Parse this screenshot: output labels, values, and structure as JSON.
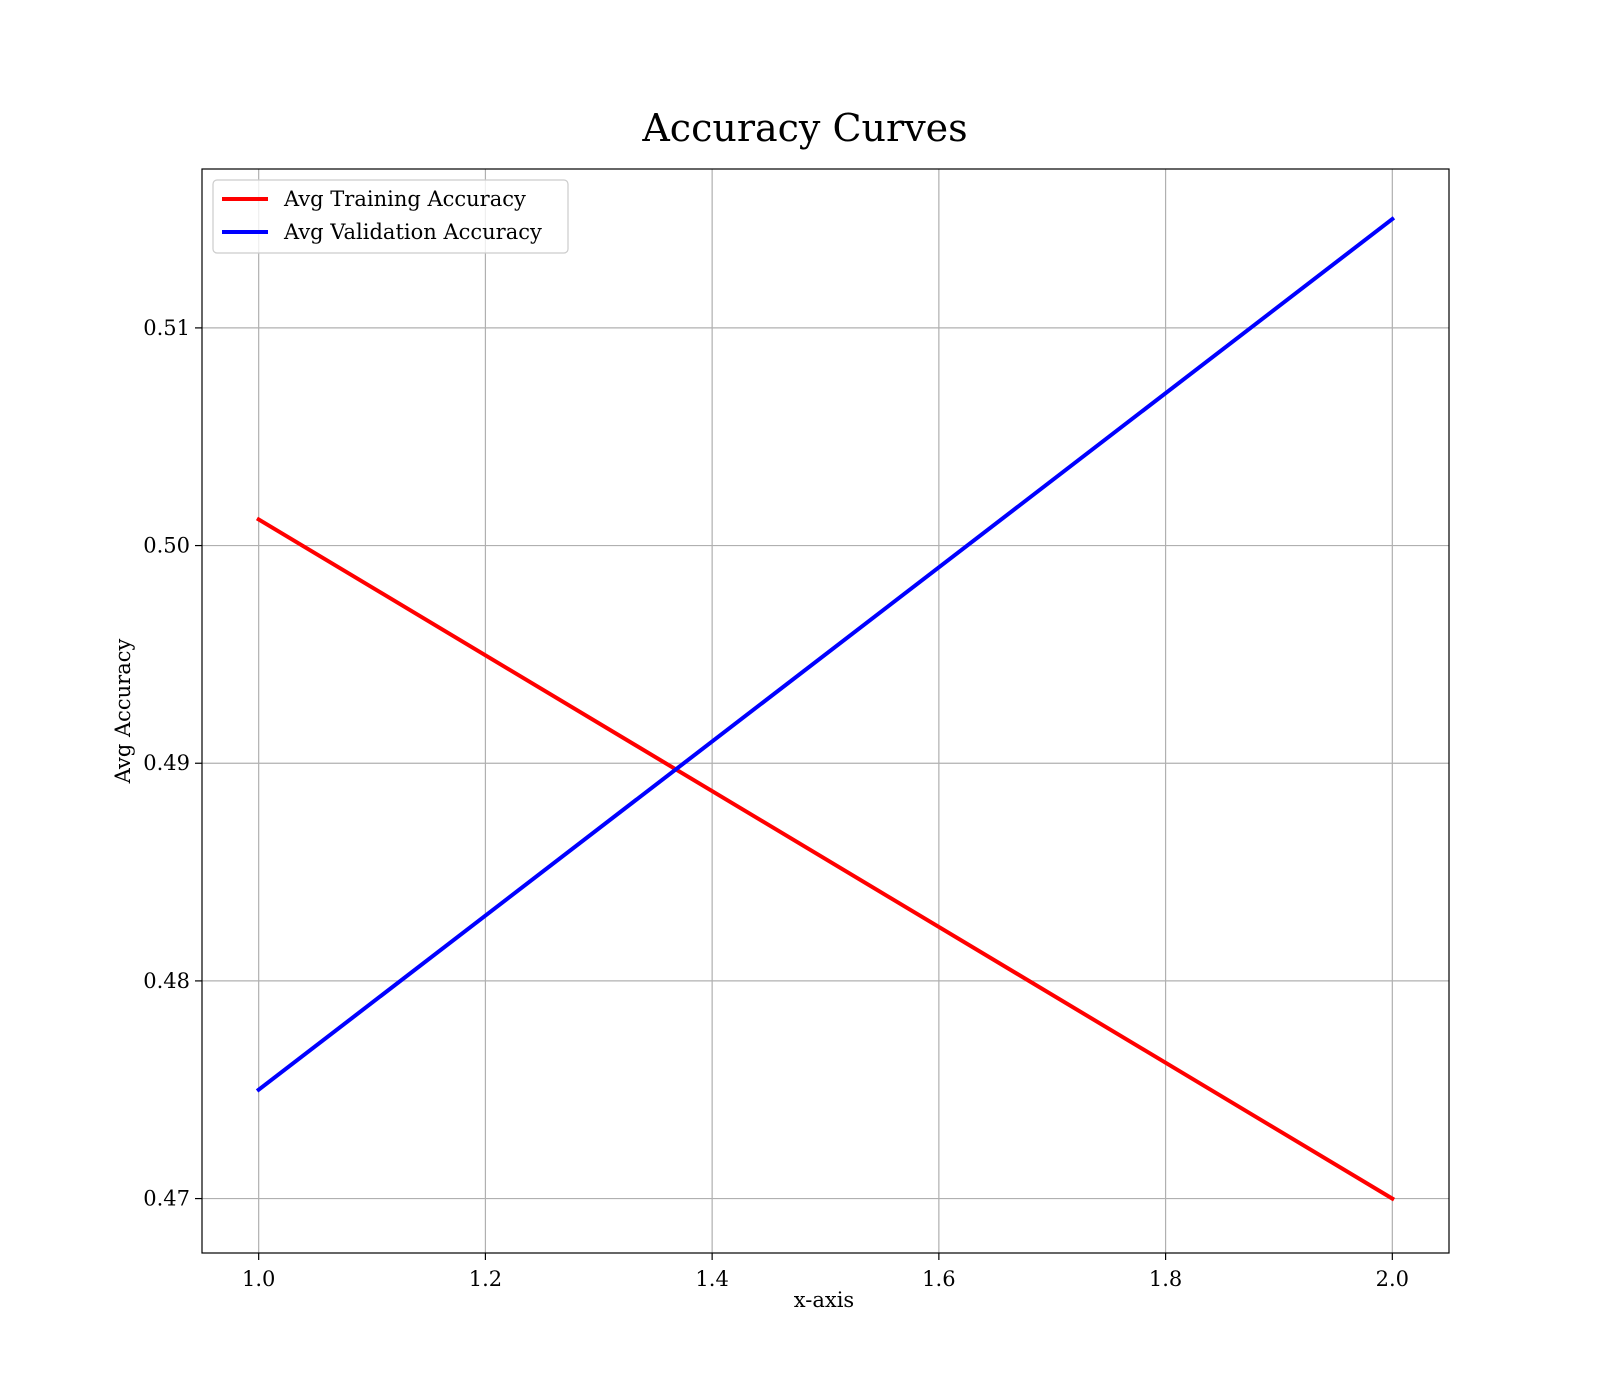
{
  "chart_data": {
    "type": "line",
    "title": "Accuracy Curves",
    "xlabel": "x-axis",
    "ylabel": "Avg Accuracy",
    "x": [
      1.0,
      2.0
    ],
    "series": [
      {
        "name": "Avg Training Accuracy",
        "color": "#ff0000",
        "values": [
          0.5012,
          0.47
        ]
      },
      {
        "name": "Avg Validation Accuracy",
        "color": "#0000ff",
        "values": [
          0.475,
          0.515
        ]
      }
    ],
    "xlim": [
      0.95,
      2.05
    ],
    "ylim": [
      0.4675,
      0.5173
    ],
    "xticks": [
      1.0,
      1.2,
      1.4,
      1.6,
      1.8,
      2.0
    ],
    "xtick_labels": [
      "1.0",
      "1.2",
      "1.4",
      "1.6",
      "1.8",
      "2.0"
    ],
    "yticks": [
      0.47,
      0.48,
      0.49,
      0.5,
      0.51
    ],
    "ytick_labels": [
      "0.47",
      "0.48",
      "0.49",
      "0.50",
      "0.51"
    ],
    "grid": true,
    "legend_position": "top-left"
  }
}
